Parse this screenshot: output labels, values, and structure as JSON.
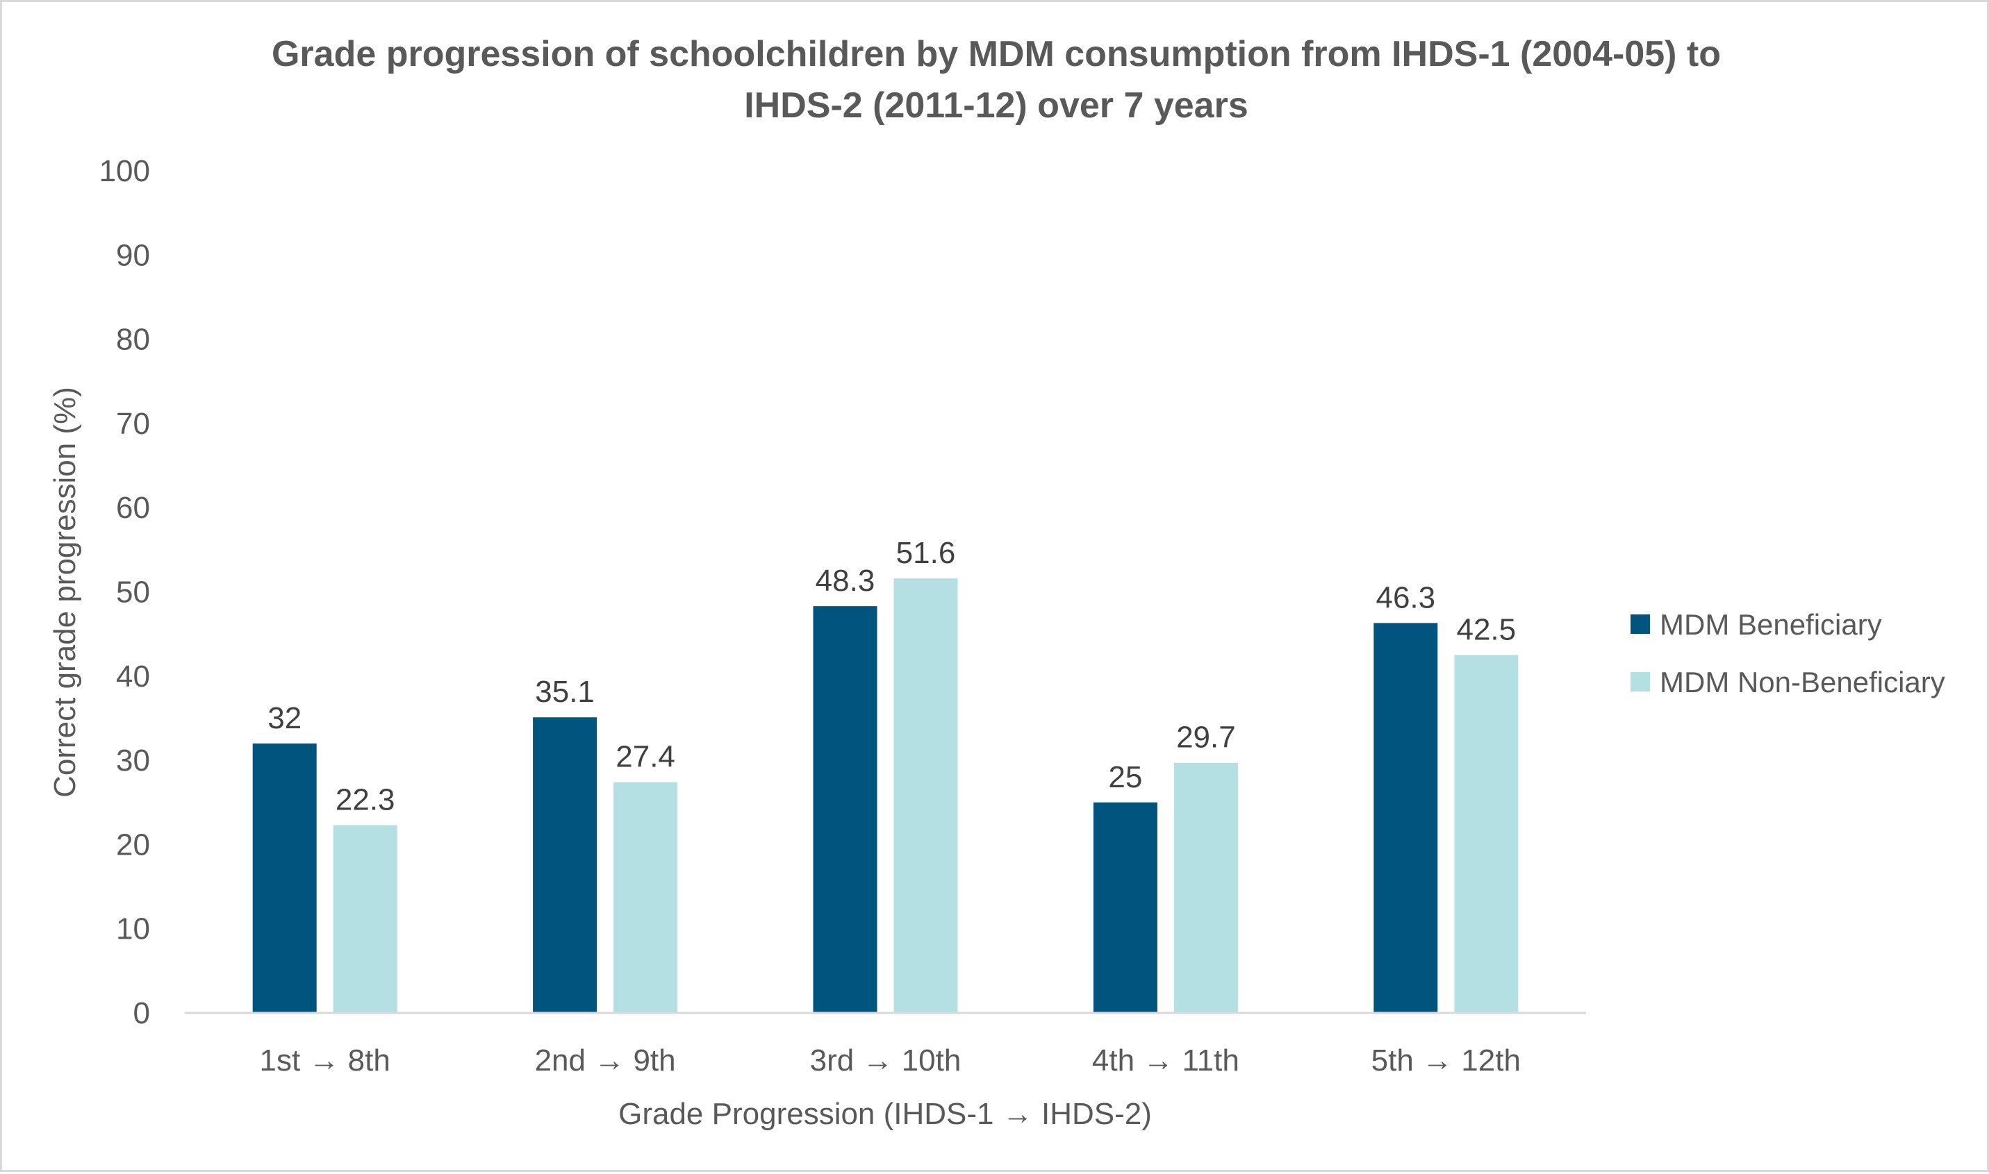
{
  "chart_data": {
    "type": "bar",
    "title": "Grade progression of schoolchildren by MDM consumption from IHDS-1 (2004-05) to IHDS-2 (2011-12) over 7 years",
    "title_lines": [
      "Grade progression of schoolchildren by MDM consumption from IHDS-1 (2004-05) to",
      "IHDS-2 (2011-12) over 7 years"
    ],
    "xlabel": "Grade Progression (IHDS-1 → IHDS-2)",
    "ylabel": "Correct grade progression (%)",
    "ylim": [
      0,
      100
    ],
    "yticks": [
      "0",
      "10",
      "20",
      "30",
      "40",
      "50",
      "60",
      "70",
      "80",
      "90",
      "100"
    ],
    "categories": [
      "1st → 8th",
      "2nd → 9th",
      "3rd → 10th",
      "4th → 11th",
      "5th → 12th"
    ],
    "series": [
      {
        "name": "MDM Beneficiary",
        "color": "#00547d",
        "values": [
          32,
          35.1,
          48.3,
          25,
          46.3
        ],
        "labels": [
          "32",
          "35.1",
          "48.3",
          "25",
          "46.3"
        ]
      },
      {
        "name": "MDM Non-Beneficiary",
        "color": "#b5e0e3",
        "values": [
          22.3,
          27.4,
          51.6,
          29.7,
          42.5
        ],
        "labels": [
          "22.3",
          "27.4",
          "51.6",
          "29.7",
          "42.5"
        ]
      }
    ],
    "grid": false,
    "legend_position": "right"
  }
}
